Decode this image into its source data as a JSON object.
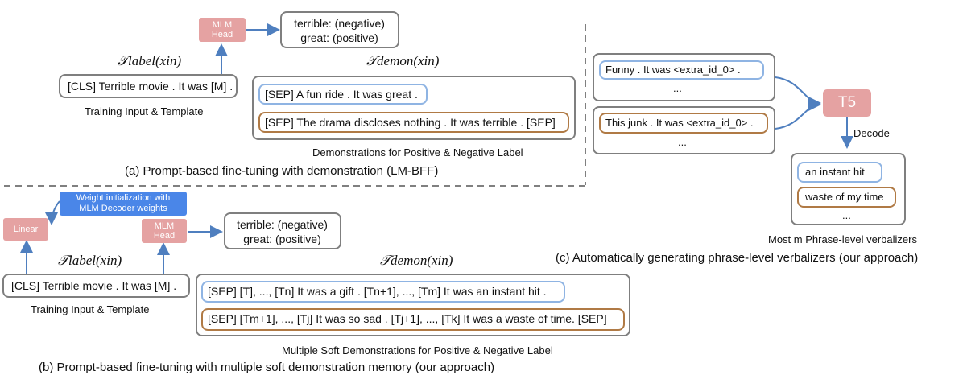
{
  "panel_a": {
    "mlm_head": [
      "MLM",
      "Head"
    ],
    "label_words": [
      "terrible: (negative)",
      "great: (positive)"
    ],
    "t_label": "𝒯label(xin)",
    "t_demon": "𝒯demon(xin)",
    "input_template": "[CLS] Terrible movie . It was [M] .",
    "input_caption": "Training Input & Template",
    "demo_positive": "[SEP] A fun ride . It was great .",
    "demo_negative": "[SEP] The drama discloses nothing . It was terrible . [SEP]",
    "demo_caption": "Demonstrations for Positive & Negative Label",
    "caption": "(a) Prompt-based fine-tuning with demonstration (LM-BFF)"
  },
  "panel_b": {
    "weight_init": [
      "Weight initialization with",
      "MLM Decoder weights"
    ],
    "linear": "Linear",
    "mlm_head": [
      "MLM",
      "Head"
    ],
    "label_words": [
      "terrible: (negative)",
      "great: (positive)"
    ],
    "t_label": "𝒯label(xin)",
    "t_demon": "𝒯demon(xin)",
    "input_template": "[CLS] Terrible movie . It was [M] .",
    "input_caption": "Training Input & Template",
    "demo_positive": "[SEP] [T], ..., [Tn] It was a gift . [Tn+1], ..., [Tm] It was an instant hit .",
    "demo_negative": "[SEP] [Tm+1], ..., [Tj] It was so sad . [Tj+1], ..., [Tk] It was a waste of time. [SEP]",
    "demo_caption": "Multiple Soft Demonstrations for Positive & Negative Label",
    "caption": "(b) Prompt-based fine-tuning with multiple soft demonstration memory (our approach)"
  },
  "panel_c": {
    "input1": "Funny . It was <extra_id_0> .",
    "input2": "This junk . It was <extra_id_0> .",
    "ellipsis": "...",
    "t5": "T5",
    "decode": "Decode",
    "phrase_pos": "an instant hit",
    "phrase_neg": "waste of my time",
    "phrases_caption": "Most m Phrase-level verbalizers",
    "caption": "(c) Automatically generating phrase-level verbalizers (our approach)"
  },
  "colors": {
    "gray_border": "#7f7f7f",
    "blue_border": "#8fb4e3",
    "brown_border": "#b07a45",
    "pink_block": "#e5a2a2",
    "blue_block": "#4a86e8",
    "arrow": "#4f7fbf"
  }
}
